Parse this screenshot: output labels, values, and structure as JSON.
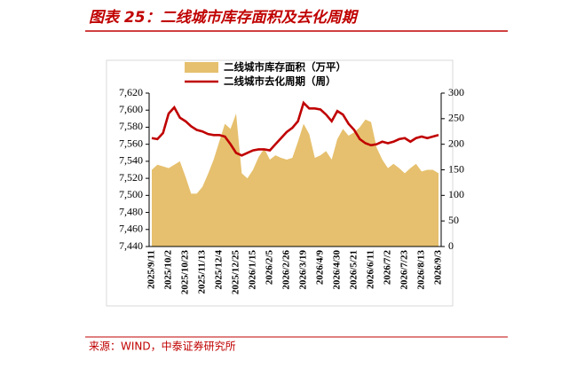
{
  "chart_data": {
    "type": "area-line",
    "title": "图表 25：二线城市库存面积及去化周期",
    "source": "来源：WIND，中泰证券研究所",
    "categories": [
      "2025/9/11",
      null,
      null,
      "2025/10/2",
      null,
      null,
      "2025/10/23",
      null,
      null,
      "2025/11/13",
      null,
      null,
      "2025/12/4",
      null,
      null,
      "2025/12/25",
      null,
      null,
      "2026/1/15",
      null,
      null,
      "2026/2/5",
      null,
      null,
      "2026/2/26",
      null,
      null,
      "2026/3/19",
      null,
      null,
      "2026/4/9",
      null,
      null,
      "2026/4/30",
      null,
      null,
      "2026/5/21",
      null,
      null,
      "2026/6/11",
      null,
      null,
      "2026/7/2",
      null,
      null,
      "2026/7/23",
      null,
      null,
      "2026/8/13",
      null,
      null,
      "2026/9/3"
    ],
    "series": [
      {
        "name": "二线城市库存面积（万平）",
        "kind": "area",
        "color": "#e6c06e",
        "axis": "y",
        "values": [
          7530,
          7536,
          7534,
          7532,
          7536,
          7540,
          7522,
          7502,
          7502,
          7510,
          7525,
          7542,
          7563,
          7584,
          7578,
          7596,
          7526,
          7520,
          7530,
          7545,
          7555,
          7542,
          7547,
          7544,
          7542,
          7544,
          7563,
          7584,
          7572,
          7544,
          7547,
          7552,
          7542,
          7566,
          7578,
          7570,
          7574,
          7580,
          7589,
          7586,
          7556,
          7542,
          7532,
          7537,
          7532,
          7526,
          7532,
          7537,
          7528,
          7530,
          7530,
          7526
        ]
      },
      {
        "name": "二线城市去化周期（周）",
        "kind": "line",
        "color": "#c00000",
        "axis": "y2",
        "values": [
          212,
          210,
          222,
          260,
          272,
          252,
          245,
          235,
          228,
          225,
          220,
          218,
          218,
          215,
          200,
          183,
          178,
          183,
          188,
          190,
          190,
          188,
          200,
          212,
          224,
          232,
          245,
          281,
          270,
          270,
          268,
          258,
          245,
          265,
          258,
          240,
          228,
          210,
          202,
          198,
          200,
          205,
          202,
          205,
          210,
          212,
          205,
          212,
          215,
          212,
          215,
          218
        ]
      }
    ],
    "ylim": [
      7440,
      7620
    ],
    "yticks": [
      {
        "value": 7440,
        "label": "7,440"
      },
      {
        "value": 7460,
        "label": "7,460"
      },
      {
        "value": 7480,
        "label": "7,480"
      },
      {
        "value": 7500,
        "label": "7,500"
      },
      {
        "value": 7520,
        "label": "7,520"
      },
      {
        "value": 7540,
        "label": "7,540"
      },
      {
        "value": 7560,
        "label": "7,560"
      },
      {
        "value": 7580,
        "label": "7,580"
      },
      {
        "value": 7600,
        "label": "7,600"
      },
      {
        "value": 7620,
        "label": "7,620"
      }
    ],
    "y2lim": [
      0,
      300
    ],
    "y2ticks": [
      0,
      50,
      100,
      150,
      200,
      250,
      300
    ]
  }
}
